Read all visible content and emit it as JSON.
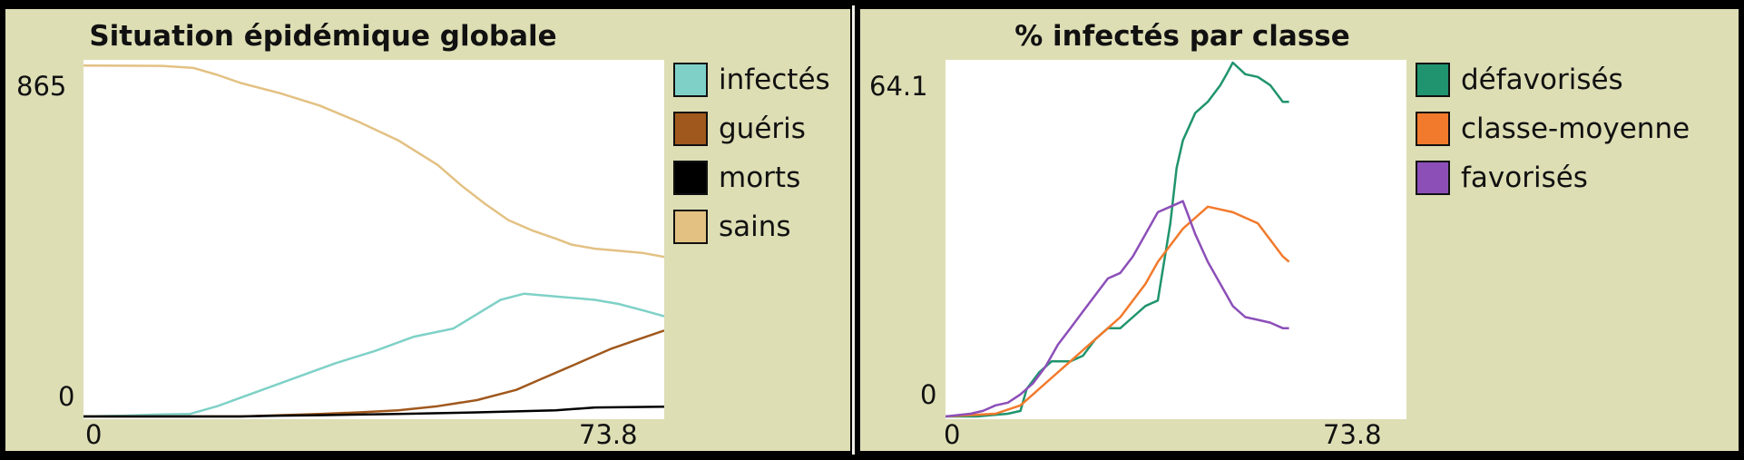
{
  "chart_data": [
    {
      "type": "line",
      "title": "Situation épidémique globale",
      "xlabel": "",
      "ylabel": "",
      "xlim": [
        0,
        73.8
      ],
      "ylim": [
        0,
        865
      ],
      "tick_labels": {
        "x_min": "0",
        "x_max": "73.8",
        "y_min": "0",
        "y_max": "865"
      },
      "legend_placement": "right",
      "grid": false,
      "series": [
        {
          "name": "infectés",
          "color": "#7fd1c7",
          "points": [
            [
              0,
              0
            ],
            [
              5,
              2
            ],
            [
              10,
              5
            ],
            [
              13.5,
              6
            ],
            [
              17,
              25
            ],
            [
              22,
              60
            ],
            [
              27,
              95
            ],
            [
              32,
              130
            ],
            [
              37,
              160
            ],
            [
              42,
              195
            ],
            [
              47,
              215
            ],
            [
              50,
              250
            ],
            [
              53,
              285
            ],
            [
              56,
              300
            ],
            [
              59,
              295
            ],
            [
              62,
              290
            ],
            [
              65,
              285
            ],
            [
              68,
              275
            ],
            [
              71,
              260
            ],
            [
              73.8,
              245
            ]
          ]
        },
        {
          "name": "guéris",
          "color": "#a0581d",
          "points": [
            [
              0,
              0
            ],
            [
              20,
              0
            ],
            [
              25,
              3
            ],
            [
              30,
              6
            ],
            [
              35,
              10
            ],
            [
              40,
              15
            ],
            [
              45,
              25
            ],
            [
              50,
              40
            ],
            [
              55,
              65
            ],
            [
              58,
              90
            ],
            [
              61,
              115
            ],
            [
              64,
              140
            ],
            [
              67,
              165
            ],
            [
              70,
              185
            ],
            [
              73.8,
              210
            ]
          ]
        },
        {
          "name": "morts",
          "color": "#000000",
          "points": [
            [
              0,
              0
            ],
            [
              20,
              0
            ],
            [
              25,
              2
            ],
            [
              30,
              3
            ],
            [
              40,
              6
            ],
            [
              50,
              10
            ],
            [
              60,
              15
            ],
            [
              65,
              22
            ],
            [
              73.8,
              24
            ]
          ]
        },
        {
          "name": "sains",
          "color": "#e3c183",
          "points": [
            [
              0,
              858
            ],
            [
              10,
              857
            ],
            [
              14,
              852
            ],
            [
              17,
              835
            ],
            [
              20,
              815
            ],
            [
              25,
              790
            ],
            [
              30,
              760
            ],
            [
              35,
              720
            ],
            [
              40,
              675
            ],
            [
              45,
              615
            ],
            [
              48,
              565
            ],
            [
              51,
              520
            ],
            [
              54,
              480
            ],
            [
              57,
              455
            ],
            [
              60,
              435
            ],
            [
              62,
              420
            ],
            [
              65,
              410
            ],
            [
              68,
              405
            ],
            [
              71,
              400
            ],
            [
              73.8,
              390
            ]
          ]
        }
      ]
    },
    {
      "type": "line",
      "title": "% infectés par classe",
      "xlabel": "",
      "ylabel": "",
      "xlim": [
        0,
        73.8
      ],
      "ylim": [
        0,
        64.1
      ],
      "tick_labels": {
        "x_min": "0",
        "x_max": "73.8",
        "y_min": "0",
        "y_max": "64.1"
      },
      "legend_placement": "right",
      "grid": false,
      "series": [
        {
          "name": "défavorisés",
          "color": "#20946e",
          "points": [
            [
              0,
              0
            ],
            [
              5,
              0
            ],
            [
              10,
              0.5
            ],
            [
              12,
              1
            ],
            [
              13,
              5
            ],
            [
              15,
              8
            ],
            [
              17,
              10
            ],
            [
              20,
              10
            ],
            [
              22,
              11
            ],
            [
              24,
              14
            ],
            [
              26,
              16
            ],
            [
              28,
              16
            ],
            [
              30,
              18
            ],
            [
              32,
              20
            ],
            [
              34,
              21
            ],
            [
              35,
              28
            ],
            [
              36,
              35
            ],
            [
              37,
              45
            ],
            [
              38,
              50
            ],
            [
              40,
              55
            ],
            [
              42,
              57
            ],
            [
              44,
              60
            ],
            [
              45,
              62
            ],
            [
              46,
              64.1
            ],
            [
              48,
              62
            ],
            [
              50,
              61.5
            ],
            [
              52,
              60
            ],
            [
              54,
              57
            ],
            [
              55,
              57
            ]
          ]
        },
        {
          "name": "classe-moyenne",
          "color": "#f27a2c",
          "points": [
            [
              0,
              0
            ],
            [
              8,
              0.5
            ],
            [
              12,
              2
            ],
            [
              14,
              4
            ],
            [
              16,
              6
            ],
            [
              18,
              8
            ],
            [
              20,
              10
            ],
            [
              22,
              12
            ],
            [
              24,
              14
            ],
            [
              26,
              16
            ],
            [
              28,
              18
            ],
            [
              30,
              21
            ],
            [
              32,
              24
            ],
            [
              34,
              28
            ],
            [
              36,
              31
            ],
            [
              38,
              34
            ],
            [
              40,
              36
            ],
            [
              42,
              38
            ],
            [
              44,
              37.5
            ],
            [
              46,
              37
            ],
            [
              48,
              36
            ],
            [
              50,
              35
            ],
            [
              52,
              32
            ],
            [
              54,
              29
            ],
            [
              55,
              28
            ]
          ]
        },
        {
          "name": "favorisés",
          "color": "#8c4fb8",
          "points": [
            [
              0,
              0
            ],
            [
              4,
              0.5
            ],
            [
              6,
              1
            ],
            [
              8,
              2
            ],
            [
              10,
              2.5
            ],
            [
              12,
              4
            ],
            [
              14,
              6
            ],
            [
              16,
              9
            ],
            [
              18,
              13
            ],
            [
              20,
              16
            ],
            [
              22,
              19
            ],
            [
              24,
              22
            ],
            [
              26,
              25
            ],
            [
              28,
              26
            ],
            [
              30,
              29
            ],
            [
              32,
              33
            ],
            [
              34,
              37
            ],
            [
              36,
              38
            ],
            [
              37,
              38.5
            ],
            [
              38,
              39
            ],
            [
              39,
              36
            ],
            [
              40,
              33
            ],
            [
              42,
              28
            ],
            [
              44,
              24
            ],
            [
              46,
              20
            ],
            [
              48,
              18
            ],
            [
              50,
              17.5
            ],
            [
              52,
              17
            ],
            [
              54,
              16
            ],
            [
              55,
              16
            ]
          ]
        }
      ]
    }
  ]
}
